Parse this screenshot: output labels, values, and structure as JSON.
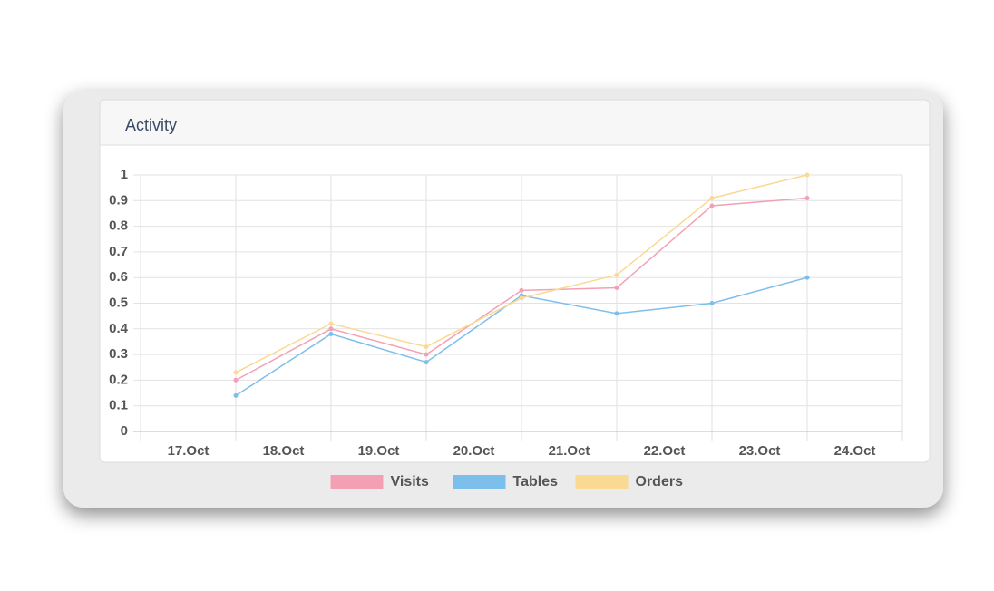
{
  "header": {
    "title": "Activity"
  },
  "chart_data": {
    "type": "line",
    "categories": [
      "17.Oct",
      "18.Oct",
      "19.Oct",
      "20.Oct",
      "21.Oct",
      "22.Oct",
      "23.Oct",
      "24.Oct"
    ],
    "series": [
      {
        "name": "Visits",
        "color": "#f4a0b4",
        "values": [
          null,
          0.2,
          0.4,
          0.3,
          0.55,
          0.56,
          0.88,
          0.91
        ]
      },
      {
        "name": "Tables",
        "color": "#7dbfeb",
        "values": [
          null,
          0.14,
          0.38,
          0.27,
          0.53,
          0.46,
          0.5,
          0.6
        ]
      },
      {
        "name": "Orders",
        "color": "#fad993",
        "values": [
          null,
          0.23,
          0.42,
          0.33,
          0.52,
          0.61,
          0.91,
          1
        ]
      }
    ],
    "ylim": [
      0,
      1
    ],
    "yticks": [
      0,
      0.1,
      0.2,
      0.3,
      0.4,
      0.5,
      0.6,
      0.7,
      0.8,
      0.9,
      1
    ],
    "grid": true,
    "legend": "bottom"
  }
}
